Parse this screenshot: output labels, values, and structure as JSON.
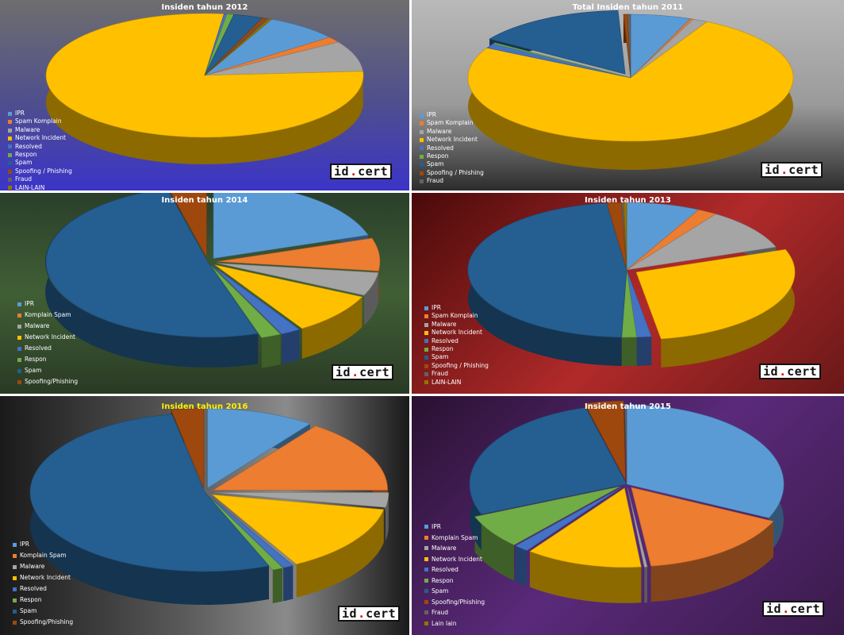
{
  "logo": {
    "left": "id",
    "dot": ".",
    "right": "cert"
  },
  "colors": {
    "IPR": "#5b9bd5",
    "Spam Komplain": "#ed7d31",
    "Komplain Spam": "#ed7d31",
    "Malware": "#a5a5a5",
    "Network Incident": "#ffc000",
    "Resolved": "#4472c4",
    "Respon": "#70ad47",
    "Spam": "#255e91",
    "Spoofing / Phishing": "#9e480e",
    "Spoofing/Phishing": "#9e480e",
    "Fraud": "#636363",
    "LAIN-LAIN": "#997300",
    "Lain lain": "#997300"
  },
  "chart_data": [
    {
      "type": "pie",
      "title": "Insiden tahun 2012",
      "series": [
        {
          "labels": [
            "IPR",
            "Spam Komplain",
            "Malware",
            "Network Incident",
            "Resolved",
            "Respon",
            "Spam",
            "Spoofing / Phishing",
            "Fraud",
            "LAIN-LAIN"
          ],
          "values": [
            7.5,
            1.5,
            8,
            78,
            0.3,
            0.7,
            3,
            0.5,
            0.2,
            0.3
          ]
        }
      ],
      "legend_position": "left"
    },
    {
      "type": "pie",
      "title": "Total Insiden tahun 2011",
      "series": [
        {
          "labels": [
            "IPR",
            "Spam Komplain",
            "Malware",
            "Network Incident",
            "Resolved",
            "Respon",
            "Spam",
            "Spoofing / Phishing",
            "Fraud"
          ],
          "values": [
            6,
            0.3,
            1.5,
            75,
            1.2,
            0.3,
            15,
            0.4,
            0.3
          ]
        }
      ],
      "legend_position": "left"
    },
    {
      "type": "pie",
      "title": "Insiden tahun 2014",
      "series": [
        {
          "labels": [
            "IPR",
            "Komplain Spam",
            "Malware",
            "Network Incident",
            "Resolved",
            "Respon",
            "Spam",
            "Spoofing/Phishing"
          ],
          "values": [
            20,
            7,
            5,
            9,
            2,
            2,
            51,
            4
          ]
        }
      ],
      "legend_position": "left"
    },
    {
      "type": "pie",
      "title": "Insiden tahun 2013",
      "series": [
        {
          "labels": [
            "IPR",
            "Spam Komplain",
            "Malware",
            "Network Incident",
            "Resolved",
            "Respon",
            "Spam",
            "Spoofing / Phishing",
            "Fraud",
            "LAIN-LAIN"
          ],
          "values": [
            7.5,
            2,
            10,
            28,
            1.5,
            1.5,
            47.5,
            1.5,
            0.2,
            0.3
          ]
        }
      ],
      "legend_position": "left"
    },
    {
      "type": "pie",
      "title": "Insiden tahun 2016",
      "series": [
        {
          "labels": [
            "IPR",
            "Komplain Spam",
            "Malware",
            "Network Incident",
            "Resolved",
            "Respon",
            "Spam",
            "Spoofing/Phishing"
          ],
          "values": [
            10,
            15,
            3,
            14,
            1,
            1,
            53,
            3
          ]
        }
      ],
      "legend_position": "left"
    },
    {
      "type": "pie",
      "title": "Insiden tahun 2015",
      "series": [
        {
          "labels": [
            "IPR",
            "Komplain Spam",
            "Malware",
            "Network Incident",
            "Resolved",
            "Respon",
            "Spam",
            "Spoofing/Phishing",
            "Fraud",
            "Lain lain"
          ],
          "values": [
            32,
            16,
            0.3,
            12,
            1.5,
            7,
            27,
            4,
            0.2,
            0
          ]
        }
      ],
      "legend_position": "left"
    }
  ],
  "legends": [
    [
      "IPR",
      "Spam Komplain",
      "Malware",
      "Network Incident",
      "Resolved",
      "Respon",
      "Spam",
      "Spoofing / Phishing",
      "Fraud",
      "LAIN-LAIN"
    ],
    [
      "IPR",
      "Spam Komplain",
      "Malware",
      "Network Incident",
      "Resolved",
      "Respon",
      "Spam",
      "Spoofing / Phishing",
      "Fraud"
    ],
    [
      "IPR",
      "Komplain Spam",
      "Malware",
      "Network Incident",
      "Resolved",
      "Respon",
      "Spam",
      "Spoofing/Phishing"
    ],
    [
      "IPR",
      "Spam Komplain",
      "Malware",
      "Network Incident",
      "Resolved",
      "Respon",
      "Spam",
      "Spoofing / Phishing",
      "Fraud",
      "LAIN-LAIN"
    ],
    [
      "IPR",
      "Komplain Spam",
      "Malware",
      "Network Incident",
      "Resolved",
      "Respon",
      "Spam",
      "Spoofing/Phishing"
    ],
    [
      "IPR",
      "Komplain Spam",
      "Malware",
      "Network Incident",
      "Resolved",
      "Respon",
      "Spam",
      "Spoofing/Phishing",
      "Fraud",
      "Lain lain"
    ]
  ]
}
